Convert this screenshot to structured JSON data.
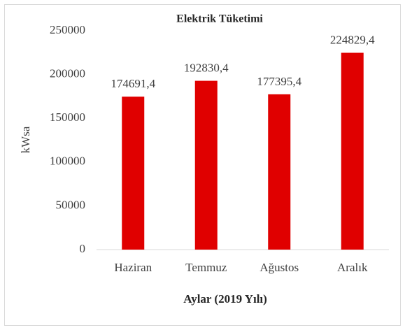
{
  "chart_data": {
    "type": "bar",
    "title": "Elektrik Tüketimi",
    "x_label": "Aylar (2019 Yılı)",
    "y_label": "kWsa",
    "categories": [
      "Haziran",
      "Temmuz",
      "Ağustos",
      "Aralık"
    ],
    "values": [
      174691.4,
      192830.4,
      177395.4,
      224829.4
    ],
    "value_labels": [
      "174691,4",
      "192830,4",
      "177395,4",
      "224829,4"
    ],
    "color": "#e00000",
    "ylim": [
      0,
      250000
    ],
    "yticks": [
      0,
      50000,
      100000,
      150000,
      200000,
      250000
    ],
    "grid": false
  }
}
